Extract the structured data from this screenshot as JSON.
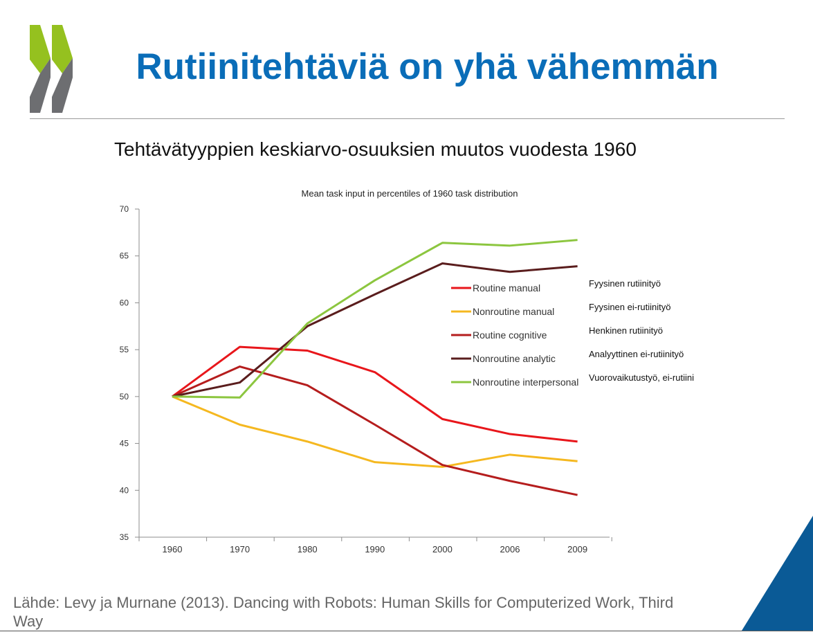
{
  "slide": {
    "title": "Rutiinitehtäviä on yhä vähemmän",
    "subtitle": "Tehtävätyyppien keskiarvo-osuuksien muutos vuodesta 1960",
    "source": "Lähde: Levy ja Murnane (2013). Dancing with Robots: Human Skills for Computerized Work, Third Way"
  },
  "colors": {
    "title": "#0a6db8",
    "logo_green": "#95c11f",
    "logo_gray": "#6d6e71",
    "corner": "#0a5a96"
  },
  "chart_data": {
    "type": "line",
    "title": "Mean task input in percentiles of 1960 task distribution",
    "categories": [
      "1960",
      "1970",
      "1980",
      "1990",
      "2000",
      "2006",
      "2009"
    ],
    "ylim": [
      35,
      70
    ],
    "yticks": [
      35,
      40,
      45,
      50,
      55,
      60,
      65,
      70
    ],
    "grid": false,
    "legend_position": "right",
    "series": [
      {
        "name": "Routine manual",
        "translation": "Fyysinen rutiinityö",
        "color": "#e8161b",
        "values": [
          50,
          55.3,
          54.9,
          52.6,
          47.6,
          46.0,
          45.2
        ]
      },
      {
        "name": "Nonroutine manual",
        "translation": "Fyysinen ei-rutiinityö",
        "color": "#f5b820",
        "values": [
          50,
          47.0,
          45.2,
          43.0,
          42.5,
          43.8,
          43.1
        ]
      },
      {
        "name": "Routine cognitive",
        "translation": "Henkinen rutiinityö",
        "color": "#b51d1d",
        "values": [
          50,
          53.2,
          51.2,
          47.0,
          42.7,
          41.0,
          39.5
        ]
      },
      {
        "name": "Nonroutine analytic",
        "translation": "Analyyttinen ei-rutiinityö",
        "color": "#5a1d1d",
        "values": [
          50,
          51.5,
          57.5,
          60.9,
          64.2,
          63.3,
          63.9
        ]
      },
      {
        "name": "Nonroutine interpersonal",
        "translation": "Vuorovaikutustyö, ei-rutiini",
        "color": "#8cc63f",
        "values": [
          50,
          49.9,
          57.8,
          62.4,
          66.4,
          66.1,
          66.7
        ]
      }
    ]
  }
}
